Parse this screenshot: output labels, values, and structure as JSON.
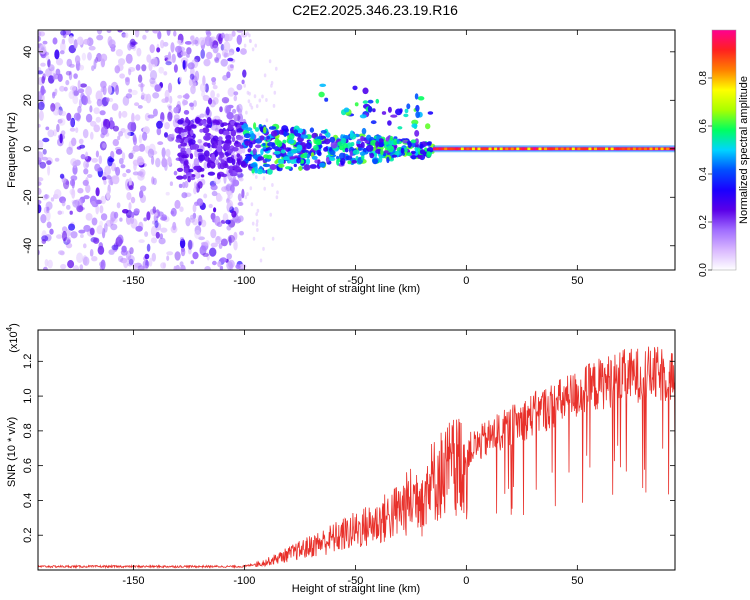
{
  "figure": {
    "title": "C2E2.2025.346.23.19.R16"
  },
  "chart_data": [
    {
      "type": "heatmap",
      "title": "C2E2.2025.346.23.19.R16",
      "xlabel": "Height of straight line (km)",
      "ylabel": "Frequency (Hz)",
      "xlim": [
        -193,
        94
      ],
      "ylim": [
        -50,
        49
      ],
      "xticks": [
        -150,
        -100,
        -50,
        0,
        50
      ],
      "yticks": [
        -40,
        -20,
        0,
        20,
        40
      ],
      "colorbar": {
        "label": "Normalized spectral amplitude",
        "range": [
          0,
          1
        ],
        "ticks": [
          "0.0",
          "0.2",
          "0.4",
          "0.6",
          "0.8"
        ],
        "tick_values": [
          0.0,
          0.2,
          0.4,
          0.6,
          0.8
        ],
        "colormap": [
          "#ffffff",
          "#d9b8ff",
          "#a06cff",
          "#5a00e8",
          "#1a00ff",
          "#0050ff",
          "#00d4ff",
          "#00ff60",
          "#aaff00",
          "#ffff00",
          "#ff8000",
          "#ff2020",
          "#ff0090"
        ]
      },
      "features": [
        {
          "name": "noise-region",
          "x_range": [
            -193,
            -100
          ],
          "y_range": [
            -50,
            49
          ],
          "amplitude": 0.15
        },
        {
          "name": "transition-region",
          "x_range": [
            -100,
            -15
          ],
          "y_center": 0,
          "amplitude": 0.4
        },
        {
          "name": "steady-line",
          "x_range": [
            -15,
            94
          ],
          "y_center": 0,
          "amplitude": 0.95
        }
      ]
    },
    {
      "type": "line",
      "xlabel": "Height of straight line (km)",
      "ylabel": "SNR (10 * v/v)",
      "yscale_label": "(x10",
      "yscale_exp": "4",
      "yscale_close": ")",
      "xlim": [
        -193,
        94
      ],
      "ylim": [
        0,
        1.38
      ],
      "xticks": [
        -150,
        -100,
        -50,
        0,
        50
      ],
      "yticks": [
        "0.2",
        "0.4",
        "0.6",
        "0.8",
        "1.0",
        "1.2"
      ],
      "ytick_values": [
        0.2,
        0.4,
        0.6,
        0.8,
        1.0,
        1.2
      ],
      "color": "#e8302a",
      "envelope": {
        "x": [
          -193,
          -130,
          -100,
          -90,
          -80,
          -70,
          -60,
          -50,
          -40,
          -30,
          -20,
          -10,
          0,
          10,
          20,
          30,
          40,
          50,
          60,
          70,
          80,
          94
        ],
        "y": [
          0.02,
          0.02,
          0.02,
          0.05,
          0.1,
          0.15,
          0.2,
          0.25,
          0.3,
          0.38,
          0.5,
          0.62,
          0.7,
          0.78,
          0.85,
          0.92,
          0.98,
          1.04,
          1.1,
          1.14,
          1.16,
          1.15
        ]
      }
    }
  ]
}
